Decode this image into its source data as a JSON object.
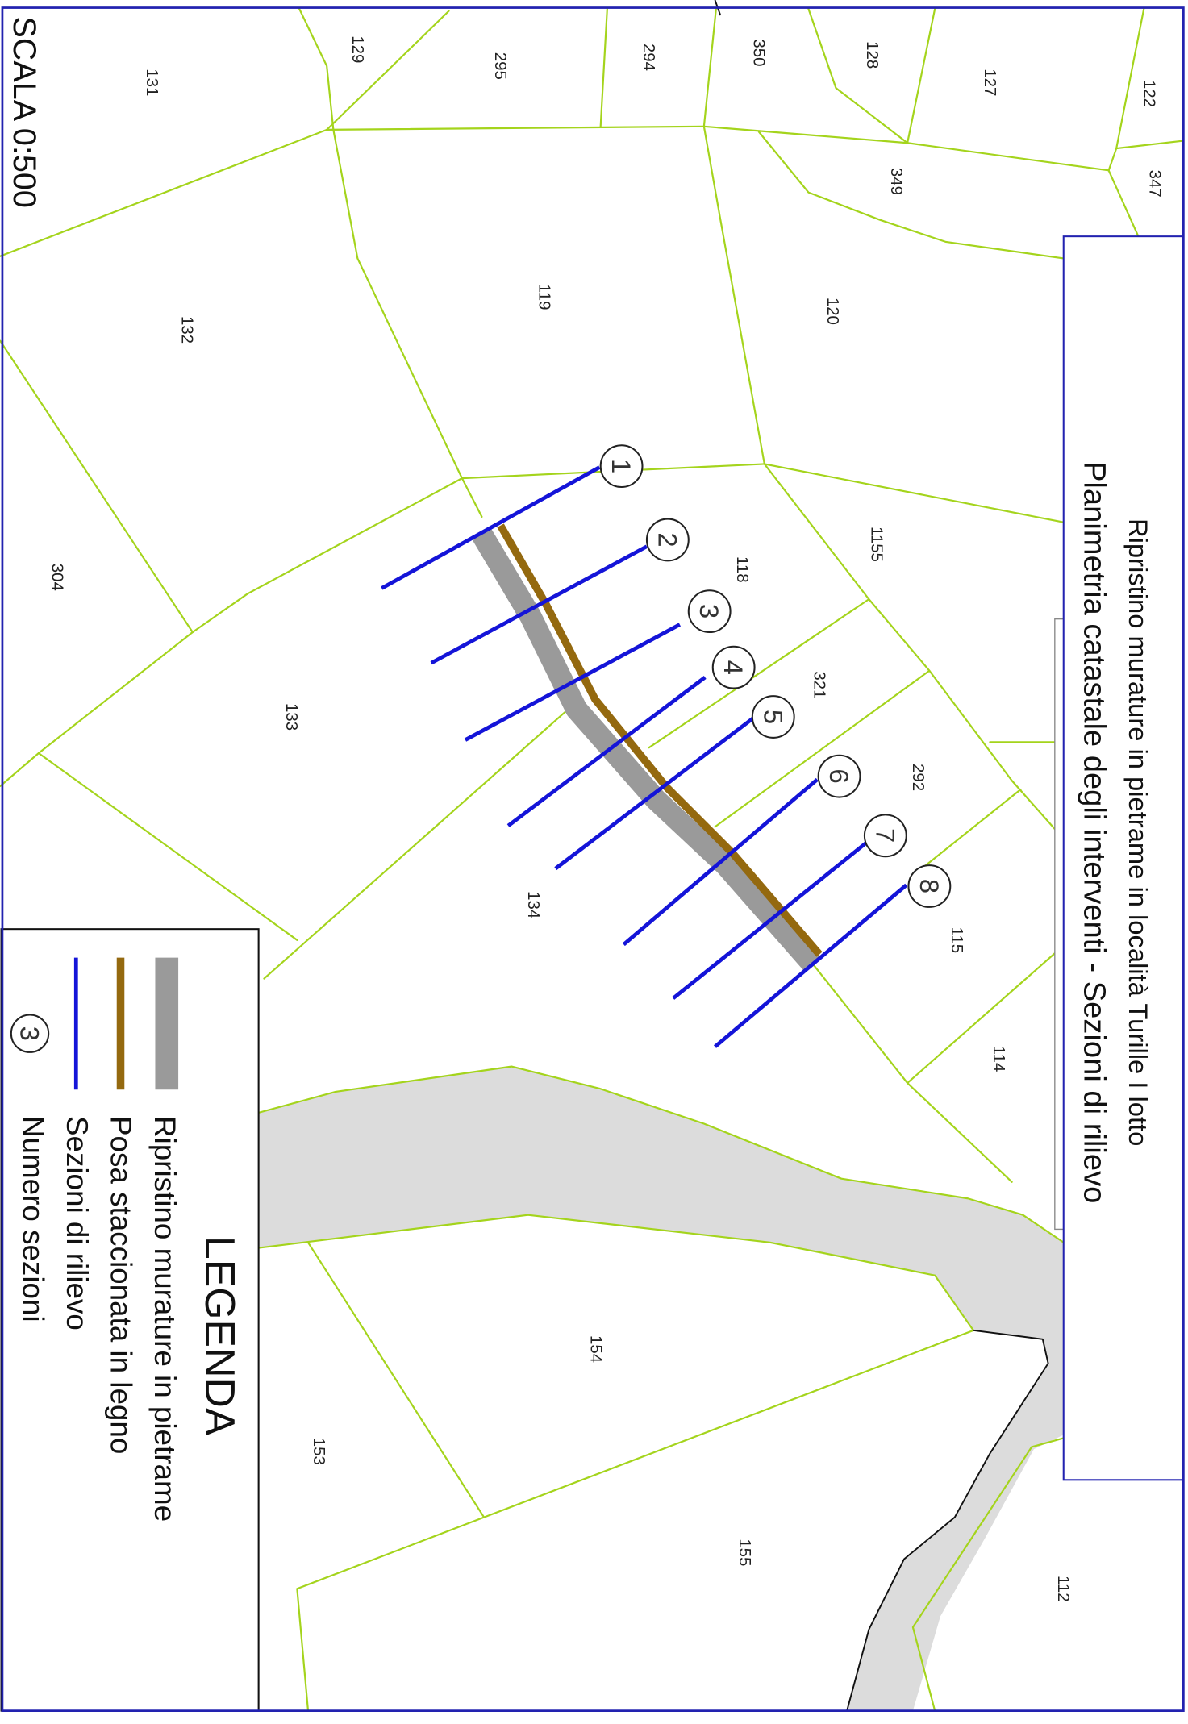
{
  "title": {
    "line1": "Ripristino murature in pietrame in località Turille I lotto",
    "line2": "Planimetria catastale degli interventi - Sezioni di rilievo"
  },
  "scale": "SCALA 0:500",
  "legend": {
    "heading": "LEGENDA",
    "items": [
      {
        "label": "Ripristino murature in pietrame",
        "symbol": "gray-band-swatch"
      },
      {
        "label": "Posa staccionata in legno",
        "symbol": "brown-line-swatch"
      },
      {
        "label": "Sezioni di rilievo",
        "symbol": "blue-line-swatch"
      },
      {
        "label": "Numero sezioni",
        "symbol": "numbered-circle-icon",
        "sample": "3"
      }
    ]
  },
  "parcels": [
    "131",
    "129",
    "295",
    "294",
    "350",
    "128",
    "127",
    "122",
    "347",
    "349",
    "119",
    "120",
    "132",
    "1155",
    "118",
    "304",
    "321",
    "133",
    "292",
    "134",
    "115",
    "114",
    "154",
    "153",
    "155",
    "112"
  ],
  "sections": [
    "1",
    "2",
    "3",
    "4",
    "5",
    "6",
    "7",
    "8"
  ],
  "colors": {
    "parcel_boundary": "#a4d41c",
    "section_line": "#1414d8",
    "fence": "#94690f",
    "wall": "#9a9a9a",
    "river": "#dcdcdc",
    "frame": "#2222b0"
  }
}
